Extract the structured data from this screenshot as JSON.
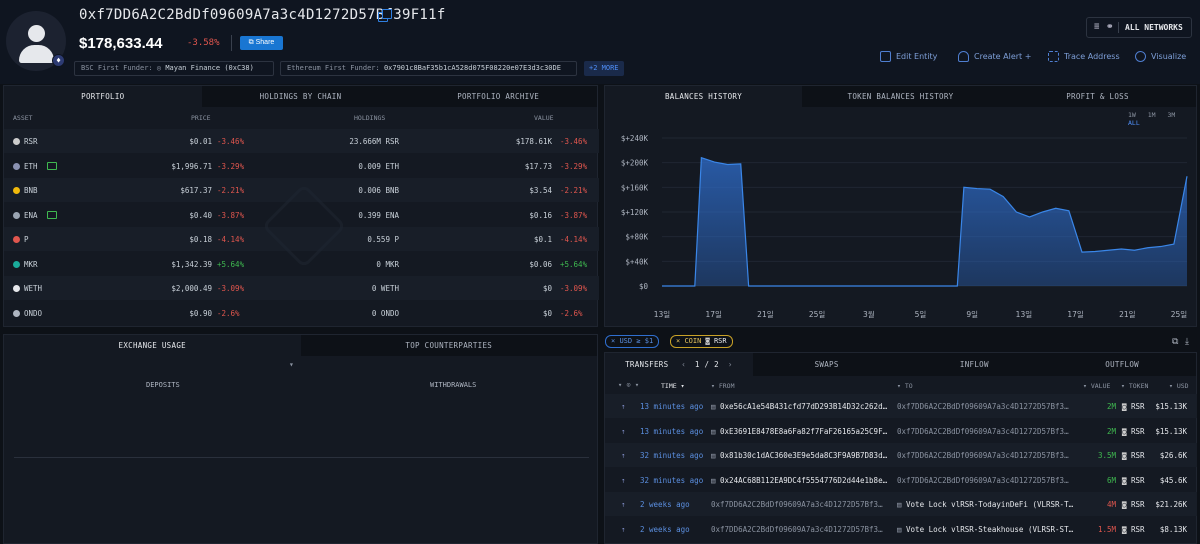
{
  "header": {
    "address": "0xf7DD6A2C2BdDf09609A7a3c4D1272D57Bf39F11f",
    "balance": "$178,633.44",
    "change": "-3.58%",
    "share_label": "Share",
    "bsc_funder_label": "BSC First Funder:",
    "bsc_funder_value": "Mayan Finance (0xC38)",
    "eth_funder_label": "Ethereum First Funder:",
    "eth_funder_value": "0x7901c8BaF35b1cA528d075F08220e07E3d3c30DE",
    "more_label": "+2 MORE",
    "networks_label": "ALL NETWORKS",
    "actions": [
      "Edit Entity",
      "Create Alert +",
      "Trace Address",
      "Visualize"
    ]
  },
  "portfolio": {
    "tabs": [
      "PORTFOLIO",
      "HOLDINGS BY CHAIN",
      "PORTFOLIO ARCHIVE"
    ],
    "columns": [
      "ASSET",
      "PRICE",
      "HOLDINGS",
      "VALUE"
    ],
    "rows": [
      {
        "asset": "RSR",
        "icon_color": "#cccccc",
        "price": "$0.01",
        "price_chg": "-3.46%",
        "holdings": "23.666M RSR",
        "value": "$178.61K",
        "value_chg": "-3.46%",
        "trend": false
      },
      {
        "asset": "ETH",
        "icon_color": "#8a92b2",
        "price": "$1,996.71",
        "price_chg": "-3.29%",
        "holdings": "0.009 ETH",
        "value": "$17.73",
        "value_chg": "-3.29%",
        "trend": true
      },
      {
        "asset": "BNB",
        "icon_color": "#f0b90b",
        "price": "$617.37",
        "price_chg": "-2.21%",
        "holdings": "0.006 BNB",
        "value": "$3.54",
        "value_chg": "-2.21%",
        "trend": false
      },
      {
        "asset": "ENA",
        "icon_color": "#9aa4b2",
        "price": "$0.40",
        "price_chg": "-3.87%",
        "holdings": "0.399 ENA",
        "value": "$0.16",
        "value_chg": "-3.87%",
        "trend": true
      },
      {
        "asset": "P",
        "icon_color": "#e0564e",
        "price": "$0.18",
        "price_chg": "-4.14%",
        "holdings": "0.559 P",
        "value": "$0.1",
        "value_chg": "-4.14%",
        "trend": false
      },
      {
        "asset": "MKR",
        "icon_color": "#1aab9b",
        "price": "$1,342.39",
        "price_chg": "+5.64%",
        "holdings": "0 MKR",
        "value": "$0.06",
        "value_chg": "+5.64%",
        "trend": false
      },
      {
        "asset": "WETH",
        "icon_color": "#e6e8ec",
        "price": "$2,000.49",
        "price_chg": "-3.09%",
        "holdings": "0 WETH",
        "value": "$0",
        "value_chg": "-3.09%",
        "trend": false
      },
      {
        "asset": "ONDO",
        "icon_color": "#aeb5c1",
        "price": "$0.90",
        "price_chg": "-2.6%",
        "holdings": "0 ONDO",
        "value": "$0",
        "value_chg": "-2.6%",
        "trend": false
      }
    ]
  },
  "balances": {
    "tabs": [
      "BALANCES HISTORY",
      "TOKEN BALANCES HISTORY",
      "PROFIT & LOSS"
    ],
    "ranges": [
      "1W",
      "1M",
      "3M",
      "ALL"
    ],
    "active_range": "ALL"
  },
  "chart_data": {
    "type": "area",
    "yticks": [
      "$0",
      "$+40K",
      "$+80K",
      "$+120K",
      "$+160K",
      "$+200K",
      "$+240K"
    ],
    "ylim": [
      0,
      240000
    ],
    "xticks": [
      "13일",
      "17일",
      "21일",
      "25일",
      "3월",
      "5일",
      "9일",
      "13일",
      "17일",
      "21일",
      "25일"
    ],
    "color": "#2f6fd0",
    "x": [
      0,
      1,
      2,
      3,
      4,
      5,
      6,
      7,
      8,
      9,
      10,
      11,
      12,
      13,
      14,
      15,
      16,
      17,
      18,
      19,
      20,
      21,
      22,
      23,
      24,
      25,
      26,
      27,
      28,
      29,
      30,
      31,
      32,
      33,
      34,
      35,
      36,
      37,
      38,
      39,
      40,
      41,
      42,
      43,
      44,
      45,
      46,
      47,
      48,
      49,
      50,
      51,
      52,
      53,
      54,
      55,
      56,
      57,
      58,
      59,
      60,
      61,
      62,
      63,
      64,
      65
    ],
    "values": [
      0,
      0,
      0,
      0,
      208000,
      202000,
      197000,
      198000,
      0,
      0,
      0,
      0,
      0,
      0,
      0,
      0,
      0,
      0,
      0,
      0,
      0,
      0,
      0,
      0,
      0,
      0,
      0,
      0,
      0,
      0,
      0,
      0,
      0,
      0,
      0,
      0,
      0,
      0,
      0,
      0,
      0,
      0,
      0,
      0,
      0,
      0,
      0,
      0,
      0,
      0,
      0,
      0,
      0,
      0,
      0,
      0,
      0,
      0,
      0,
      0,
      0,
      0,
      0,
      0,
      0,
      0
    ],
    "series_points": [
      [
        0,
        0
      ],
      [
        2.5,
        0
      ],
      [
        3,
        208000
      ],
      [
        4,
        201000
      ],
      [
        5,
        197000
      ],
      [
        6,
        198000
      ],
      [
        6.6,
        0
      ],
      [
        22.5,
        0
      ],
      [
        23,
        160000
      ],
      [
        24,
        158000
      ],
      [
        25,
        157000
      ],
      [
        26,
        145000
      ],
      [
        27,
        120000
      ],
      [
        28,
        112000
      ],
      [
        29,
        120000
      ],
      [
        30,
        126000
      ],
      [
        31,
        122000
      ],
      [
        32,
        55000
      ],
      [
        33,
        56000
      ],
      [
        34,
        58000
      ],
      [
        35,
        60000
      ],
      [
        36,
        58000
      ],
      [
        37,
        62000
      ],
      [
        38,
        64000
      ],
      [
        39,
        68000
      ],
      [
        40,
        178000
      ]
    ],
    "xmax": 40
  },
  "exchange": {
    "tabs": [
      "EXCHANGE USAGE",
      "TOP COUNTERPARTIES"
    ],
    "deposits_label": "DEPOSITS",
    "withdrawals_label": "WITHDRAWALS"
  },
  "filters": {
    "usd_chip": "USD ≥ $1",
    "coin_chip_label": "COIN",
    "coin_chip_value": "RSR"
  },
  "transfers": {
    "tabs": [
      "TRANSFERS",
      "SWAPS",
      "INFLOW",
      "OUTFLOW"
    ],
    "page": "1 / 2",
    "columns": [
      "TIME",
      "FROM",
      "TO",
      "VALUE",
      "TOKEN",
      "USD"
    ],
    "rows": [
      {
        "time": "13 minutes ago",
        "from": "0xe56cA1e54B431cfd77dD293B14D32c262d…",
        "to": "0xf7DD6A2C2BdDf09609A7a3c4D1272D57Bf3…",
        "value": "2M",
        "token": "RSR",
        "usd": "$15.13K",
        "dir": "in"
      },
      {
        "time": "13 minutes ago",
        "from": "0xE3691E8478E8a6Fa82f7FaF26165a25C9F…",
        "to": "0xf7DD6A2C2BdDf09609A7a3c4D1272D57Bf3…",
        "value": "2M",
        "token": "RSR",
        "usd": "$15.13K",
        "dir": "in"
      },
      {
        "time": "32 minutes ago",
        "from": "0x81b30c1dAC360e3E9e5da8C3F9A9B7D83d…",
        "to": "0xf7DD6A2C2BdDf09609A7a3c4D1272D57Bf3…",
        "value": "3.5M",
        "token": "RSR",
        "usd": "$26.6K",
        "dir": "in"
      },
      {
        "time": "32 minutes ago",
        "from": "0x24AC68B112EA9DC4f5554776D2d44e1b8e…",
        "to": "0xf7DD6A2C2BdDf09609A7a3c4D1272D57Bf3…",
        "value": "6M",
        "token": "RSR",
        "usd": "$45.6K",
        "dir": "in"
      },
      {
        "time": "2 weeks ago",
        "from": "0xf7DD6A2C2BdDf09609A7a3c4D1272D57Bf3…",
        "to": "Vote Lock vlRSR-TodayinDeFi (VLRSR-T…",
        "value": "4M",
        "token": "RSR",
        "usd": "$21.26K",
        "dir": "out"
      },
      {
        "time": "2 weeks ago",
        "from": "0xf7DD6A2C2BdDf09609A7a3c4D1272D57Bf3…",
        "to": "Vote Lock vlRSR-Steakhouse (VLRSR-ST…",
        "value": "1.5M",
        "token": "RSR",
        "usd": "$8.13K",
        "dir": "out"
      }
    ]
  }
}
